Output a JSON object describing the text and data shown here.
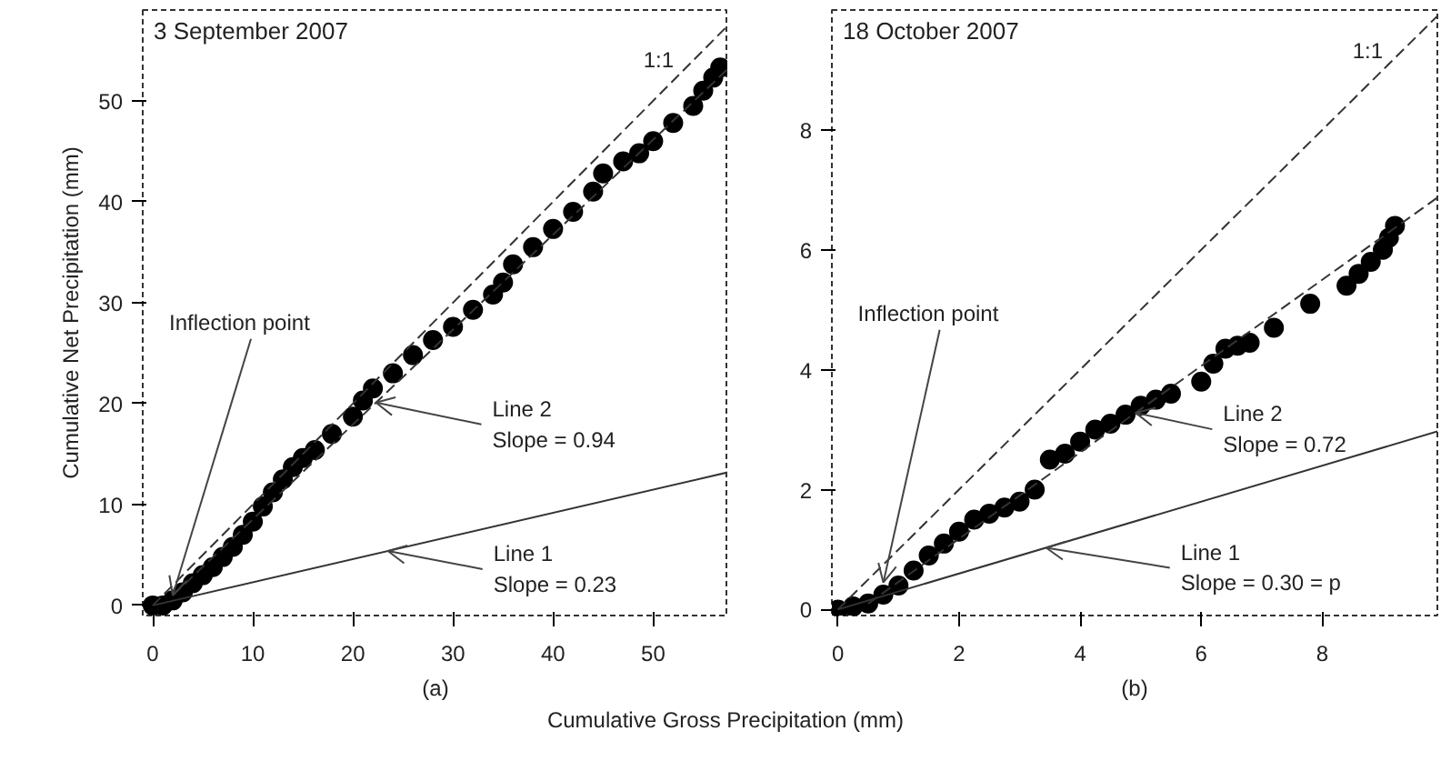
{
  "chart_data": [
    {
      "type": "scatter",
      "title": "3 September 2007",
      "xlabel": "(a)",
      "ylabel": "Cumulative Net Precipitation (mm)",
      "grid": false,
      "xlim": [
        -1,
        57.5
      ],
      "ylim": [
        -1,
        59
      ],
      "xticks": [
        0,
        10,
        20,
        30,
        40,
        50
      ],
      "yticks": [
        0,
        10,
        20,
        30,
        40,
        50
      ],
      "series": [
        {
          "color": "#000000",
          "marker": "circle",
          "x": [
            0,
            1,
            2,
            3,
            4,
            5,
            6,
            7,
            8,
            9,
            10,
            11,
            12,
            13,
            14,
            15,
            16.2,
            17.9,
            20,
            21,
            22,
            24,
            26,
            28,
            30,
            32,
            34,
            35,
            36,
            38,
            40,
            42,
            44,
            45,
            47,
            48.6,
            50,
            52,
            54,
            55,
            56,
            56.7
          ],
          "values": [
            0,
            0,
            0.5,
            1.3,
            2.2,
            3,
            3.8,
            4.8,
            5.8,
            7,
            8.3,
            9.8,
            11.2,
            12.5,
            13.7,
            14.6,
            15.4,
            17,
            18.7,
            20.3,
            21.5,
            23,
            24.8,
            26.3,
            27.6,
            29.3,
            30.8,
            32,
            33.8,
            35.5,
            37.3,
            39,
            41,
            42.8,
            44,
            44.8,
            46,
            47.8,
            49.5,
            51,
            52.3,
            53.3
          ]
        },
        {
          "type": "line",
          "name": "1:1",
          "color": "#333333",
          "line_style": "dashed",
          "x": [
            0,
            57.5
          ],
          "values": [
            0,
            57.5
          ]
        },
        {
          "type": "line",
          "color": "#333333",
          "line_style": "dashed",
          "x": [
            2,
            57.5
          ],
          "values": [
            1,
            53.2
          ]
        },
        {
          "type": "line",
          "color": "#333333",
          "line_style": "solid",
          "x": [
            0,
            57.5
          ],
          "values": [
            0,
            13.2
          ]
        }
      ],
      "annotations": [
        {
          "text": "Inflection point",
          "x": 2,
          "y": 1
        },
        {
          "text": "Line 2\nSlope = 0.94",
          "x": 22.3,
          "y": 20.1
        },
        {
          "text": "Line 1\nSlope = 0.23",
          "x": 23.5,
          "y": 5.4
        },
        "Cumulative Gross Precipitation (mm)"
      ]
    },
    {
      "type": "scatter",
      "title": "18 October 2007",
      "xlabel": "(b)",
      "grid": false,
      "xlim": [
        -0.1,
        9.9
      ],
      "ylim": [
        -0.1,
        10
      ],
      "xticks": [
        0,
        2,
        4,
        6,
        8
      ],
      "yticks": [
        0,
        2,
        4,
        6,
        8
      ],
      "series": [
        {
          "color": "#000000",
          "marker": "circle",
          "x": [
            0,
            0.25,
            0.5,
            0.75,
            1,
            1.25,
            1.5,
            1.75,
            2,
            2.25,
            2.5,
            2.75,
            3,
            3.25,
            3.5,
            3.75,
            4,
            4.25,
            4.5,
            4.75,
            5,
            5.25,
            5.5,
            6,
            6.2,
            6.4,
            6.6,
            6.8,
            7.2,
            7.8,
            8.4,
            8.6,
            8.8,
            9,
            9.1,
            9.2
          ],
          "values": [
            0,
            0.05,
            0.1,
            0.25,
            0.4,
            0.65,
            0.9,
            1.1,
            1.3,
            1.5,
            1.6,
            1.7,
            1.8,
            2.0,
            2.5,
            2.6,
            2.8,
            3.0,
            3.1,
            3.25,
            3.4,
            3.5,
            3.6,
            3.8,
            4.1,
            4.35,
            4.4,
            4.45,
            4.7,
            5.1,
            5.4,
            5.6,
            5.8,
            6.0,
            6.2,
            6.4
          ]
        },
        {
          "type": "line",
          "name": "1:1",
          "color": "#333333",
          "line_style": "dashed",
          "x": [
            0,
            9.9
          ],
          "values": [
            0,
            9.9
          ]
        },
        {
          "type": "line",
          "color": "#333333",
          "line_style": "dashed",
          "x": [
            0.5,
            9.9
          ],
          "values": [
            0.1,
            6.87
          ]
        },
        {
          "type": "line",
          "color": "#333333",
          "line_style": "solid",
          "x": [
            0,
            9.9
          ],
          "values": [
            0,
            2.97
          ]
        }
      ],
      "annotations": [
        {
          "text": "Inflection point",
          "x": 0.75,
          "y": 0.45
        },
        {
          "text": "Line 2\nSlope = 0.72",
          "x": 4.92,
          "y": 3.28
        },
        {
          "text": "Line 1\nSlope = 0.30 = p",
          "x": 3.44,
          "y": 1.03
        }
      ]
    }
  ]
}
